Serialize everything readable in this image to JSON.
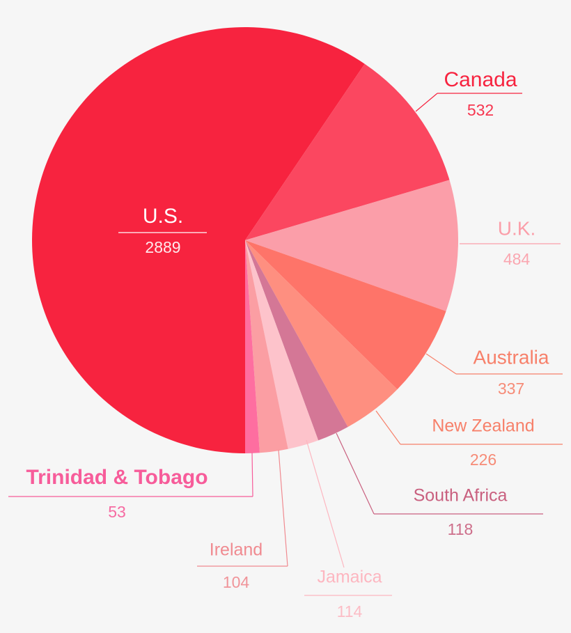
{
  "chart_data": {
    "type": "pie",
    "categories": [
      "U.S.",
      "Canada",
      "U.K.",
      "Australia",
      "New Zealand",
      "South Africa",
      "Jamaica",
      "Ireland",
      "Trinidad & Tobago"
    ],
    "values": [
      2889,
      532,
      484,
      337,
      226,
      118,
      114,
      104,
      53
    ],
    "colors": [
      "#f7233f",
      "#fb4760",
      "#fb9ea9",
      "#fe7469",
      "#fe8f80",
      "#d47796",
      "#fdc3cb",
      "#fb9ea3",
      "#fe6ea0"
    ],
    "label_colors": [
      "#ffffff",
      "#f7233f",
      "#fb9ea9",
      "#f7806a",
      "#f7806a",
      "#c9607f",
      "#fdb6c0",
      "#f08a90",
      "#f75c9a"
    ]
  }
}
